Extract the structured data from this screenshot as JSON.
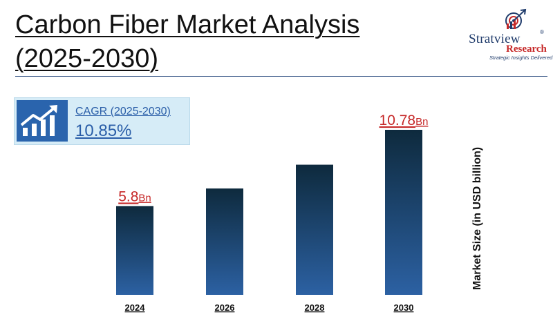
{
  "title": "Carbon Fiber Market Analysis (2025-2030)",
  "logo": {
    "name": "Stratview",
    "registered": "®",
    "sub": "Research",
    "tagline": "Strategic Insights Delivered"
  },
  "cagr": {
    "label": "CAGR (2025-2030)",
    "value": "10.85%",
    "icon": "growth-chart-icon"
  },
  "colors": {
    "bar_top": "#0e2a3d",
    "bar_bottom": "#2c61a3",
    "value_label": "#c62828",
    "accent": "#2a64ad"
  },
  "chart_data": {
    "type": "bar",
    "categories": [
      "2024",
      "2026",
      "2028",
      "2030"
    ],
    "values": [
      5.8,
      6.95,
      8.5,
      10.78
    ],
    "data_labels": [
      {
        "index": 0,
        "number": "5.8",
        "unit": "Bn"
      },
      {
        "index": 3,
        "number": "10.78",
        "unit": "Bn"
      }
    ],
    "ylabel": "Market Size (in USD billion)",
    "ylim": [
      0,
      10.78
    ],
    "grid": false,
    "legend": "none"
  }
}
